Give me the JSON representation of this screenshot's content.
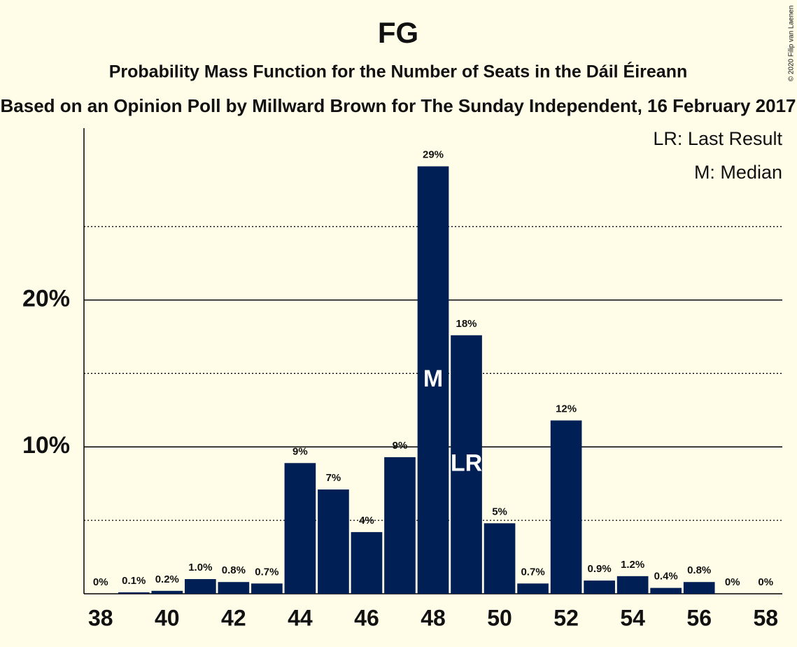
{
  "chart_data": {
    "type": "bar",
    "title": "FG",
    "subtitle": "Probability Mass Function for the Number of Seats in the Dáil Éireann",
    "caption": "Based on an Opinion Poll by Millward Brown for The Sunday Independent, 16 February 2017",
    "copyright": "© 2020 Filip van Laenen",
    "x": [
      38,
      39,
      40,
      41,
      42,
      43,
      44,
      45,
      46,
      47,
      48,
      49,
      50,
      51,
      52,
      53,
      54,
      55,
      56,
      57,
      58
    ],
    "values": [
      0,
      0.1,
      0.2,
      1.0,
      0.8,
      0.7,
      8.9,
      7.1,
      4.2,
      9.3,
      29.1,
      17.6,
      4.8,
      0.7,
      11.8,
      0.9,
      1.2,
      0.4,
      0.8,
      0,
      0
    ],
    "value_labels": [
      "0%",
      "0.1%",
      "0.2%",
      "1.0%",
      "0.8%",
      "0.7%",
      "9%",
      "7%",
      "4%",
      "9%",
      "29%",
      "18%",
      "5%",
      "0.7%",
      "12%",
      "0.9%",
      "1.2%",
      "0.4%",
      "0.8%",
      "0%",
      "0%"
    ],
    "color": "#001f54",
    "xlim": [
      37.5,
      58.5
    ],
    "xticks": [
      38,
      40,
      42,
      44,
      46,
      48,
      50,
      52,
      54,
      56,
      58
    ],
    "ylim": [
      0,
      31.7
    ],
    "yticks": [
      {
        "value": 10,
        "label": "10%"
      },
      {
        "value": 20,
        "label": "20%"
      }
    ],
    "minor_gridlines": [
      5,
      15,
      25
    ],
    "markers": [
      {
        "x": 48,
        "label": "M"
      },
      {
        "x": 49,
        "label": "LR"
      }
    ],
    "legend": [
      "LR: Last Result",
      "M: Median"
    ],
    "legend_position": "upper right"
  }
}
